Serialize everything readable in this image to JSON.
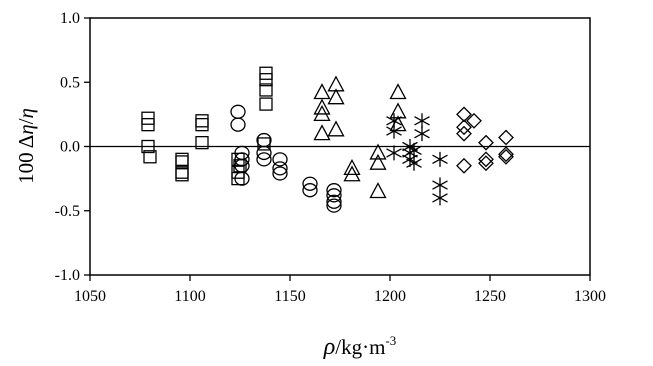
{
  "chart_data": {
    "type": "scatter",
    "title": "",
    "xlabel_parts": [
      "ρ",
      "/kg·m",
      "-3"
    ],
    "ylabel_parts": [
      "100 Δ",
      "η",
      "/",
      "η"
    ],
    "xlim": [
      1050,
      1300
    ],
    "ylim": [
      -1.0,
      1.0
    ],
    "xticks": [
      1050,
      1100,
      1150,
      1200,
      1250,
      1300
    ],
    "xtick_labels": [
      "1050",
      "1100",
      "1150",
      "1200",
      "1250",
      "1300"
    ],
    "yticks": [
      1.0,
      0.5,
      0.0,
      -0.5,
      -1.0
    ],
    "ytick_labels": [
      "1.0",
      "0.5",
      "0.0",
      "-0.5",
      "-1.0"
    ],
    "grid": false,
    "legend": "none",
    "reference_line_y": 0.0,
    "series": [
      {
        "marker": "square",
        "points": [
          [
            1079,
            0.22
          ],
          [
            1079,
            0.17
          ],
          [
            1079,
            0.0
          ],
          [
            1080,
            -0.08
          ],
          [
            1096,
            -0.1
          ],
          [
            1096,
            -0.12
          ],
          [
            1096,
            -0.2
          ],
          [
            1096,
            -0.22
          ],
          [
            1106,
            0.2
          ],
          [
            1106,
            0.17
          ],
          [
            1106,
            0.03
          ],
          [
            1124,
            -0.1
          ],
          [
            1124,
            -0.2
          ],
          [
            1124,
            -0.25
          ],
          [
            1125,
            -0.15
          ],
          [
            1138,
            0.57
          ],
          [
            1138,
            0.52
          ],
          [
            1138,
            0.44
          ],
          [
            1138,
            0.33
          ],
          [
            1137,
            0.02
          ]
        ]
      },
      {
        "marker": "circle",
        "points": [
          [
            1124,
            0.27
          ],
          [
            1124,
            0.17
          ],
          [
            1126,
            -0.05
          ],
          [
            1126,
            -0.1
          ],
          [
            1126,
            -0.15
          ],
          [
            1126,
            -0.25
          ],
          [
            1137,
            0.05
          ],
          [
            1137,
            -0.05
          ],
          [
            1137,
            -0.1
          ],
          [
            1145,
            -0.1
          ],
          [
            1145,
            -0.17
          ],
          [
            1145,
            -0.21
          ],
          [
            1160,
            -0.29
          ],
          [
            1160,
            -0.34
          ],
          [
            1172,
            -0.34
          ],
          [
            1172,
            -0.38
          ],
          [
            1172,
            -0.43
          ],
          [
            1172,
            -0.46
          ]
        ]
      },
      {
        "marker": "triangle",
        "points": [
          [
            1166,
            0.42
          ],
          [
            1166,
            0.3
          ],
          [
            1166,
            0.25
          ],
          [
            1166,
            0.1
          ],
          [
            1173,
            0.48
          ],
          [
            1173,
            0.38
          ],
          [
            1173,
            0.13
          ],
          [
            1181,
            -0.17
          ],
          [
            1181,
            -0.22
          ],
          [
            1194,
            -0.05
          ],
          [
            1194,
            -0.13
          ],
          [
            1194,
            -0.35
          ],
          [
            1204,
            0.42
          ],
          [
            1204,
            0.27
          ],
          [
            1204,
            0.17
          ]
        ]
      },
      {
        "marker": "asterisk",
        "points": [
          [
            1202,
            0.2
          ],
          [
            1202,
            0.12
          ],
          [
            1202,
            -0.05
          ],
          [
            1210,
            0.0
          ],
          [
            1210,
            -0.05
          ],
          [
            1210,
            -0.1
          ],
          [
            1212,
            -0.03
          ],
          [
            1212,
            -0.13
          ],
          [
            1216,
            0.2
          ],
          [
            1216,
            0.1
          ],
          [
            1225,
            -0.1
          ],
          [
            1225,
            -0.3
          ],
          [
            1225,
            -0.4
          ]
        ]
      },
      {
        "marker": "diamond",
        "points": [
          [
            1237,
            0.25
          ],
          [
            1237,
            0.15
          ],
          [
            1237,
            0.1
          ],
          [
            1237,
            -0.15
          ],
          [
            1242,
            0.2
          ],
          [
            1248,
            0.03
          ],
          [
            1248,
            -0.1
          ],
          [
            1248,
            -0.13
          ],
          [
            1258,
            0.07
          ],
          [
            1258,
            -0.06
          ],
          [
            1258,
            -0.08
          ]
        ]
      }
    ]
  }
}
